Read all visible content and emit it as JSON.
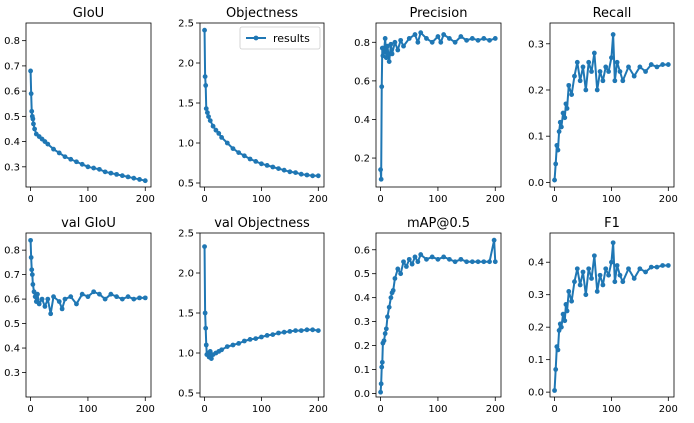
{
  "colors": {
    "series": "#1f77b4",
    "background": "#ffffff",
    "axes": "#000000"
  },
  "legend": {
    "label": "results",
    "placement": "top-right",
    "panel": 1
  },
  "chart_data": [
    {
      "type": "line",
      "title": "GIoU",
      "xlabel": "",
      "ylabel": "",
      "xlim": [
        -8,
        210
      ],
      "ylim": [
        0.22,
        0.87
      ],
      "xticks": [
        0,
        100,
        200
      ],
      "yticks": [
        0.3,
        0.4,
        0.5,
        0.6,
        0.7,
        0.8
      ],
      "series": [
        {
          "x": [
            0,
            1,
            2,
            3,
            4,
            5,
            7,
            10,
            15,
            20,
            25,
            30,
            40,
            50,
            60,
            70,
            80,
            90,
            100,
            110,
            120,
            130,
            140,
            150,
            160,
            170,
            180,
            190,
            200
          ],
          "y": [
            0.68,
            0.59,
            0.52,
            0.5,
            0.49,
            0.47,
            0.45,
            0.43,
            0.42,
            0.41,
            0.4,
            0.39,
            0.37,
            0.355,
            0.34,
            0.33,
            0.32,
            0.31,
            0.3,
            0.295,
            0.29,
            0.28,
            0.275,
            0.27,
            0.265,
            0.26,
            0.255,
            0.25,
            0.245
          ]
        }
      ]
    },
    {
      "type": "line",
      "title": "Objectness",
      "xlabel": "",
      "ylabel": "",
      "xlim": [
        -8,
        210
      ],
      "ylim": [
        0.45,
        2.5
      ],
      "xticks": [
        0,
        100,
        200
      ],
      "yticks": [
        0.5,
        1.0,
        1.5,
        2.0,
        2.5
      ],
      "series": [
        {
          "name": "results",
          "x": [
            0,
            1,
            2,
            3,
            5,
            7,
            10,
            15,
            20,
            25,
            30,
            40,
            50,
            60,
            70,
            80,
            90,
            100,
            110,
            120,
            130,
            140,
            150,
            160,
            170,
            180,
            190,
            200
          ],
          "y": [
            2.41,
            1.83,
            1.72,
            1.43,
            1.38,
            1.33,
            1.28,
            1.21,
            1.16,
            1.12,
            1.07,
            1.0,
            0.93,
            0.88,
            0.84,
            0.8,
            0.77,
            0.74,
            0.72,
            0.7,
            0.68,
            0.66,
            0.64,
            0.63,
            0.61,
            0.6,
            0.59,
            0.59
          ]
        }
      ]
    },
    {
      "type": "line",
      "title": "Precision",
      "xlabel": "",
      "ylabel": "",
      "xlim": [
        -8,
        210
      ],
      "ylim": [
        0.05,
        0.9
      ],
      "xticks": [
        0,
        100,
        200
      ],
      "yticks": [
        0.2,
        0.4,
        0.6,
        0.8
      ],
      "series": [
        {
          "x": [
            0,
            1,
            2,
            3,
            4,
            6,
            8,
            10,
            12,
            15,
            18,
            20,
            25,
            30,
            35,
            40,
            50,
            60,
            65,
            70,
            80,
            90,
            100,
            105,
            110,
            120,
            130,
            140,
            150,
            160,
            170,
            180,
            190,
            200
          ],
          "y": [
            0.14,
            0.09,
            0.57,
            0.77,
            0.73,
            0.75,
            0.82,
            0.72,
            0.78,
            0.7,
            0.79,
            0.74,
            0.8,
            0.76,
            0.81,
            0.78,
            0.82,
            0.84,
            0.8,
            0.85,
            0.82,
            0.8,
            0.83,
            0.8,
            0.84,
            0.82,
            0.8,
            0.83,
            0.81,
            0.82,
            0.81,
            0.82,
            0.81,
            0.82
          ]
        }
      ]
    },
    {
      "type": "line",
      "title": "Recall",
      "xlabel": "",
      "ylabel": "",
      "xlim": [
        -8,
        210
      ],
      "ylim": [
        -0.01,
        0.345
      ],
      "xticks": [
        0,
        100,
        200
      ],
      "yticks": [
        0.0,
        0.1,
        0.2,
        0.3
      ],
      "series": [
        {
          "x": [
            0,
            2,
            4,
            6,
            8,
            10,
            12,
            15,
            18,
            20,
            22,
            25,
            30,
            35,
            40,
            45,
            50,
            55,
            60,
            65,
            70,
            75,
            80,
            85,
            90,
            95,
            100,
            103,
            106,
            110,
            115,
            120,
            130,
            140,
            150,
            160,
            170,
            180,
            190,
            200
          ],
          "y": [
            0.005,
            0.04,
            0.08,
            0.07,
            0.11,
            0.13,
            0.12,
            0.15,
            0.14,
            0.17,
            0.16,
            0.21,
            0.19,
            0.23,
            0.26,
            0.22,
            0.25,
            0.2,
            0.26,
            0.24,
            0.28,
            0.2,
            0.24,
            0.22,
            0.25,
            0.24,
            0.27,
            0.32,
            0.22,
            0.26,
            0.24,
            0.22,
            0.25,
            0.23,
            0.25,
            0.24,
            0.255,
            0.25,
            0.255,
            0.255
          ]
        }
      ]
    },
    {
      "type": "line",
      "title": "val GIoU",
      "xlabel": "",
      "ylabel": "",
      "xlim": [
        -8,
        210
      ],
      "ylim": [
        0.2,
        0.87
      ],
      "xticks": [
        0,
        100,
        200
      ],
      "yticks": [
        0.3,
        0.4,
        0.5,
        0.6,
        0.7,
        0.8
      ],
      "series": [
        {
          "x": [
            0,
            1,
            2,
            3,
            4,
            6,
            8,
            10,
            12,
            15,
            20,
            25,
            30,
            35,
            40,
            50,
            55,
            60,
            70,
            80,
            90,
            100,
            110,
            120,
            130,
            140,
            150,
            160,
            170,
            180,
            190,
            200
          ],
          "y": [
            0.84,
            0.77,
            0.72,
            0.7,
            0.66,
            0.63,
            0.61,
            0.59,
            0.62,
            0.58,
            0.6,
            0.57,
            0.6,
            0.54,
            0.61,
            0.59,
            0.56,
            0.6,
            0.61,
            0.58,
            0.62,
            0.61,
            0.63,
            0.62,
            0.6,
            0.62,
            0.61,
            0.6,
            0.61,
            0.6,
            0.605,
            0.605
          ]
        }
      ]
    },
    {
      "type": "line",
      "title": "val Objectness",
      "xlabel": "",
      "ylabel": "",
      "xlim": [
        -8,
        210
      ],
      "ylim": [
        0.45,
        2.5
      ],
      "xticks": [
        0,
        100,
        200
      ],
      "yticks": [
        0.5,
        1.0,
        1.5,
        2.0,
        2.5
      ],
      "series": [
        {
          "x": [
            0,
            1,
            2,
            3,
            4,
            6,
            8,
            10,
            12,
            15,
            20,
            25,
            30,
            40,
            50,
            60,
            70,
            80,
            90,
            100,
            110,
            120,
            130,
            140,
            150,
            160,
            170,
            180,
            190,
            200
          ],
          "y": [
            2.33,
            1.5,
            1.31,
            1.1,
            0.98,
            1.0,
            0.95,
            1.02,
            0.93,
            0.98,
            1.0,
            1.02,
            1.04,
            1.08,
            1.1,
            1.12,
            1.15,
            1.17,
            1.18,
            1.2,
            1.22,
            1.23,
            1.25,
            1.26,
            1.27,
            1.28,
            1.28,
            1.29,
            1.29,
            1.28
          ]
        }
      ]
    },
    {
      "type": "line",
      "title": "mAP@0.5",
      "xlabel": "",
      "ylabel": "",
      "xlim": [
        -8,
        210
      ],
      "ylim": [
        -0.015,
        0.67
      ],
      "xticks": [
        0,
        100,
        200
      ],
      "yticks": [
        0.0,
        0.1,
        0.2,
        0.3,
        0.4,
        0.5,
        0.6
      ],
      "series": [
        {
          "x": [
            0,
            1,
            2,
            3,
            4,
            6,
            8,
            10,
            12,
            15,
            18,
            20,
            22,
            25,
            30,
            35,
            40,
            45,
            50,
            55,
            60,
            65,
            70,
            80,
            90,
            100,
            110,
            120,
            130,
            140,
            150,
            160,
            170,
            180,
            190,
            198,
            200
          ],
          "y": [
            0.005,
            0.04,
            0.11,
            0.13,
            0.21,
            0.22,
            0.25,
            0.27,
            0.32,
            0.36,
            0.4,
            0.42,
            0.43,
            0.48,
            0.52,
            0.5,
            0.55,
            0.53,
            0.56,
            0.54,
            0.57,
            0.55,
            0.58,
            0.56,
            0.57,
            0.56,
            0.57,
            0.56,
            0.55,
            0.56,
            0.55,
            0.55,
            0.55,
            0.55,
            0.55,
            0.64,
            0.55
          ]
        }
      ]
    },
    {
      "type": "line",
      "title": "F1",
      "xlabel": "",
      "ylabel": "",
      "xlim": [
        -8,
        210
      ],
      "ylim": [
        -0.015,
        0.49
      ],
      "xticks": [
        0,
        100,
        200
      ],
      "yticks": [
        0.0,
        0.1,
        0.2,
        0.3,
        0.4
      ],
      "series": [
        {
          "x": [
            0,
            2,
            4,
            6,
            8,
            10,
            12,
            15,
            18,
            20,
            22,
            25,
            30,
            35,
            40,
            45,
            50,
            55,
            60,
            65,
            70,
            75,
            80,
            85,
            90,
            95,
            100,
            103,
            106,
            110,
            115,
            120,
            130,
            140,
            150,
            160,
            170,
            180,
            190,
            200
          ],
          "y": [
            0.005,
            0.07,
            0.14,
            0.13,
            0.19,
            0.21,
            0.2,
            0.24,
            0.22,
            0.27,
            0.25,
            0.31,
            0.28,
            0.34,
            0.38,
            0.33,
            0.37,
            0.3,
            0.38,
            0.35,
            0.42,
            0.31,
            0.36,
            0.33,
            0.38,
            0.36,
            0.4,
            0.46,
            0.34,
            0.39,
            0.36,
            0.34,
            0.38,
            0.35,
            0.38,
            0.37,
            0.385,
            0.385,
            0.39,
            0.39
          ]
        }
      ]
    }
  ]
}
